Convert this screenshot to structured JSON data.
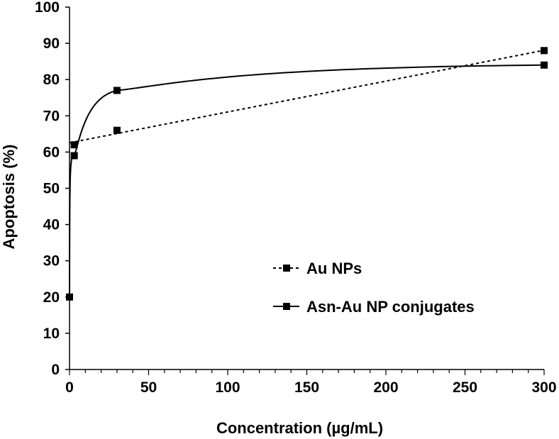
{
  "chart_data": {
    "type": "line",
    "title": "",
    "xlabel": "Concentration (µg/mL)",
    "ylabel": "Apoptosis (%)",
    "xlim": [
      0,
      300
    ],
    "ylim": [
      0,
      100
    ],
    "x_ticks": [
      0,
      50,
      100,
      150,
      200,
      250,
      300
    ],
    "y_ticks": [
      0,
      10,
      20,
      30,
      40,
      50,
      60,
      70,
      80,
      90,
      100
    ],
    "grid": false,
    "legend_position": "lower-right",
    "series": [
      {
        "name": "Au NPs",
        "style": "dotted",
        "trend": "linear",
        "marker": "square",
        "color": "#000000",
        "points": [
          [
            3,
            62
          ],
          [
            30,
            66
          ],
          [
            300,
            88
          ]
        ]
      },
      {
        "name": "Asn-Au NP conjugates",
        "style": "solid",
        "trend": "logarithmic",
        "marker": "square",
        "color": "#000000",
        "points": [
          [
            0,
            20
          ],
          [
            3,
            59
          ],
          [
            30,
            77
          ],
          [
            300,
            84
          ]
        ]
      }
    ]
  }
}
